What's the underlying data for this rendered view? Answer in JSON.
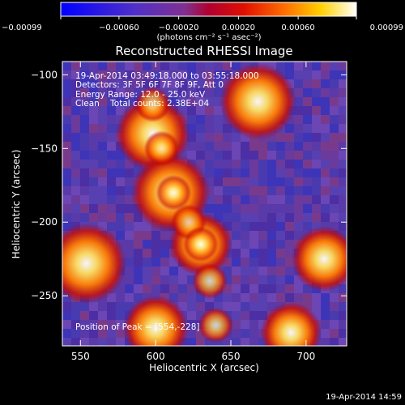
{
  "chart_data": {
    "type": "heatmap",
    "title": "Reconstructed RHESSI Image",
    "xlabel": "Heliocentric X (arcsec)",
    "ylabel": "Heliocentric Y (arcsec)",
    "xlim": [
      538,
      727
    ],
    "ylim": [
      -284,
      -91
    ],
    "x_ticks": [
      550,
      600,
      650,
      700
    ],
    "y_ticks": [
      -100,
      -150,
      -200,
      -250
    ],
    "x_tick_labels": [
      "550",
      "600",
      "650",
      "700"
    ],
    "y_tick_labels": [
      "−100",
      "−150",
      "−200",
      "−250"
    ],
    "colorbar": {
      "ticks": [
        -0.00099,
        -0.0006,
        -0.0002,
        0.0002,
        0.0006,
        0.00099
      ],
      "tick_labels": [
        "−0.00099",
        "−0.00060",
        "−0.00020",
        "0.00020",
        "0.00060",
        "0.00099"
      ],
      "unit_label": "(photons cm⁻² s⁻¹ asec⁻²)"
    },
    "annotations": [
      "19-Apr-2014 03:49:18.000 to 03:55:18.000",
      "Detectors: 3F 5F 6F 7F 8F 9F, Att 0",
      "Energy Range: 12.0 - 25.0 keV",
      "Clean    Total counts: 2.38E+04"
    ],
    "peak_label": "Position of Peak = [554,-228]",
    "peak": [
      554,
      -228
    ],
    "bright_regions": [
      {
        "x": 598,
        "y": -140,
        "value": 0.00085
      },
      {
        "x": 610,
        "y": -180,
        "value": 0.00095
      },
      {
        "x": 630,
        "y": -215,
        "value": 0.0006
      },
      {
        "x": 668,
        "y": -118,
        "value": 0.0009
      },
      {
        "x": 554,
        "y": -228,
        "value": 0.00099
      },
      {
        "x": 712,
        "y": -225,
        "value": 0.00065
      },
      {
        "x": 600,
        "y": -272,
        "value": 0.00065
      },
      {
        "x": 690,
        "y": -275,
        "value": 0.00055
      }
    ]
  },
  "footer_timestamp": "19-Apr-2014 14:59"
}
